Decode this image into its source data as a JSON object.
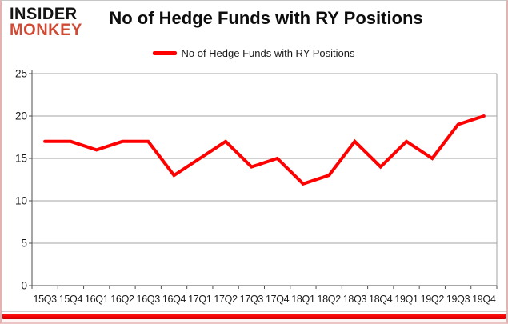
{
  "logo": {
    "line1": "INSIDER",
    "line2": "MONKEY"
  },
  "title": "No of Hedge Funds with RY Positions",
  "legend": {
    "label": "No of Hedge Funds with RY Positions"
  },
  "colors": {
    "series": "#ff0000",
    "logo_accent": "#cf4a35",
    "accent_bar": "#f20000",
    "grid": "#a3a3a3",
    "axis": "#4d4d4d",
    "tick_label": "#1a1a1a"
  },
  "chart_data": {
    "type": "line",
    "title": "No of Hedge Funds with RY Positions",
    "categories": [
      "15Q3",
      "15Q4",
      "16Q1",
      "16Q2",
      "16Q3",
      "16Q4",
      "17Q1",
      "17Q2",
      "17Q3",
      "17Q4",
      "18Q1",
      "18Q2",
      "18Q3",
      "18Q4",
      "19Q1",
      "19Q2",
      "19Q3",
      "19Q4"
    ],
    "series": [
      {
        "name": "No of Hedge Funds with RY Positions",
        "color": "#ff0000",
        "values": [
          17,
          17,
          16,
          17,
          17,
          13,
          15,
          17,
          14,
          15,
          12,
          13,
          17,
          14,
          17,
          15,
          19,
          20
        ]
      }
    ],
    "xlabel": "",
    "ylabel": "",
    "ylim": [
      0,
      25
    ],
    "yticks": [
      0,
      5,
      10,
      15,
      20,
      25
    ],
    "grid": true,
    "legend_position": "top"
  }
}
